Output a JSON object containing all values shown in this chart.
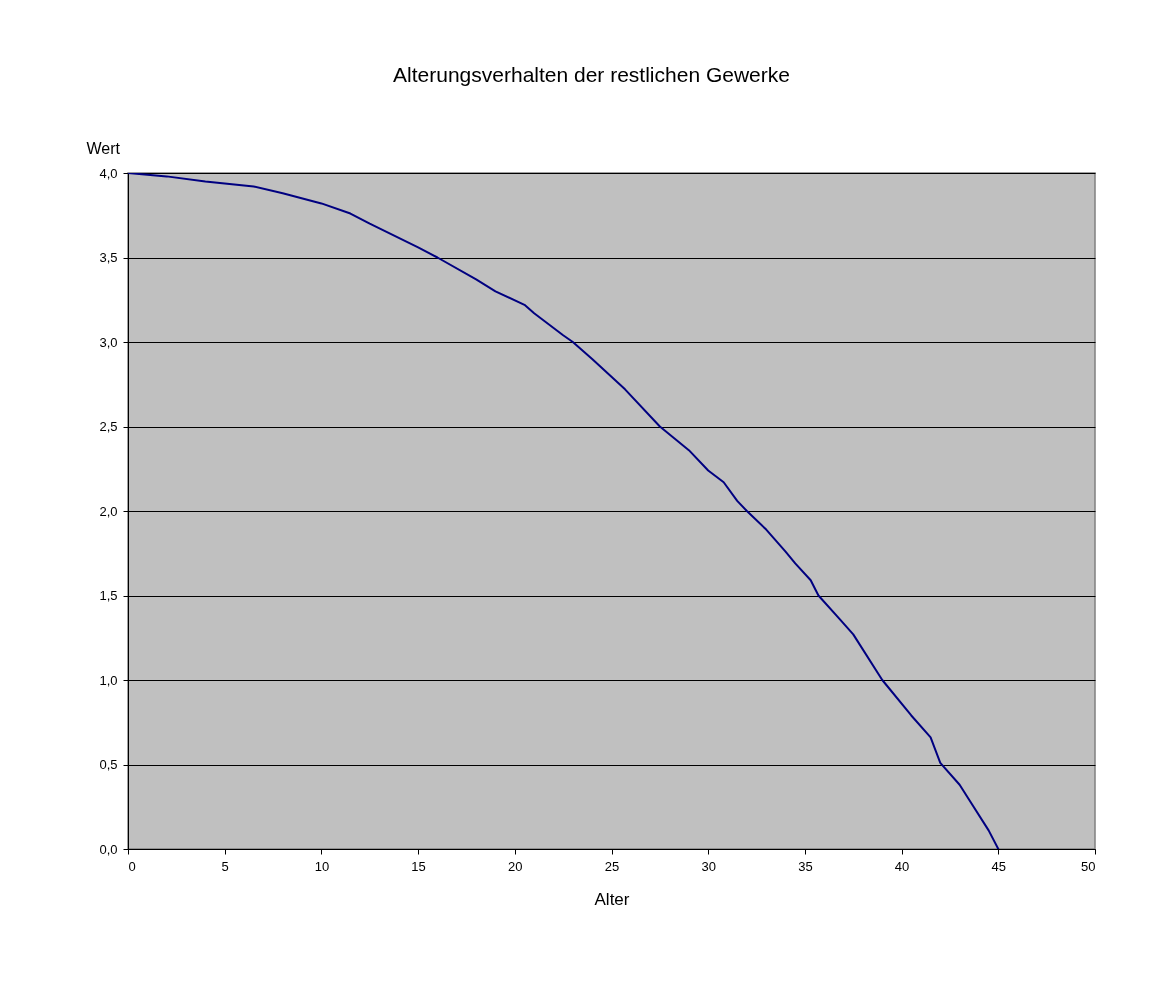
{
  "chart_data": {
    "type": "line",
    "title": "Alterungsverhalten der restlichen Gewerke",
    "xlabel": "Alter",
    "ylabel": "Wert",
    "x": [
      0,
      2,
      4,
      6.5,
      8,
      10,
      11.5,
      12.5,
      15,
      16,
      18,
      19,
      20.5,
      21,
      22.5,
      23,
      24,
      25.7,
      27.5,
      29,
      30,
      30.8,
      31.5,
      32,
      33,
      34,
      34.5,
      35.3,
      35.7,
      36.8,
      37.5,
      39,
      40.5,
      41.5,
      42,
      43,
      43.5,
      44.5,
      45
    ],
    "series": [
      {
        "color": "#000080",
        "values": [
          4.0,
          3.98,
          3.95,
          3.92,
          3.88,
          3.82,
          3.76,
          3.7,
          3.56,
          3.5,
          3.37,
          3.3,
          3.22,
          3.17,
          3.04,
          3.0,
          2.9,
          2.72,
          2.5,
          2.36,
          2.24,
          2.17,
          2.06,
          2.0,
          1.89,
          1.76,
          1.69,
          1.59,
          1.5,
          1.36,
          1.27,
          1.0,
          0.79,
          0.66,
          0.51,
          0.38,
          0.29,
          0.11,
          0.0
        ]
      }
    ],
    "xlim": [
      0,
      50
    ],
    "xticks": [
      0,
      5,
      10,
      15,
      20,
      25,
      30,
      35,
      40,
      45,
      50
    ],
    "ylim": [
      0,
      4
    ],
    "yticks": [
      {
        "value": 0,
        "label": "0,0"
      },
      {
        "value": 0.5,
        "label": "0,5"
      },
      {
        "value": 1,
        "label": "1,0"
      },
      {
        "value": 1.5,
        "label": "1,5"
      },
      {
        "value": 2,
        "label": "2,0"
      },
      {
        "value": 2.5,
        "label": "2,5"
      },
      {
        "value": 3,
        "label": "3,0"
      },
      {
        "value": 3.5,
        "label": "3,5"
      },
      {
        "value": 4,
        "label": "4,0"
      }
    ],
    "grid": "y",
    "legend": false,
    "marker": "none",
    "line_style": "solid"
  }
}
